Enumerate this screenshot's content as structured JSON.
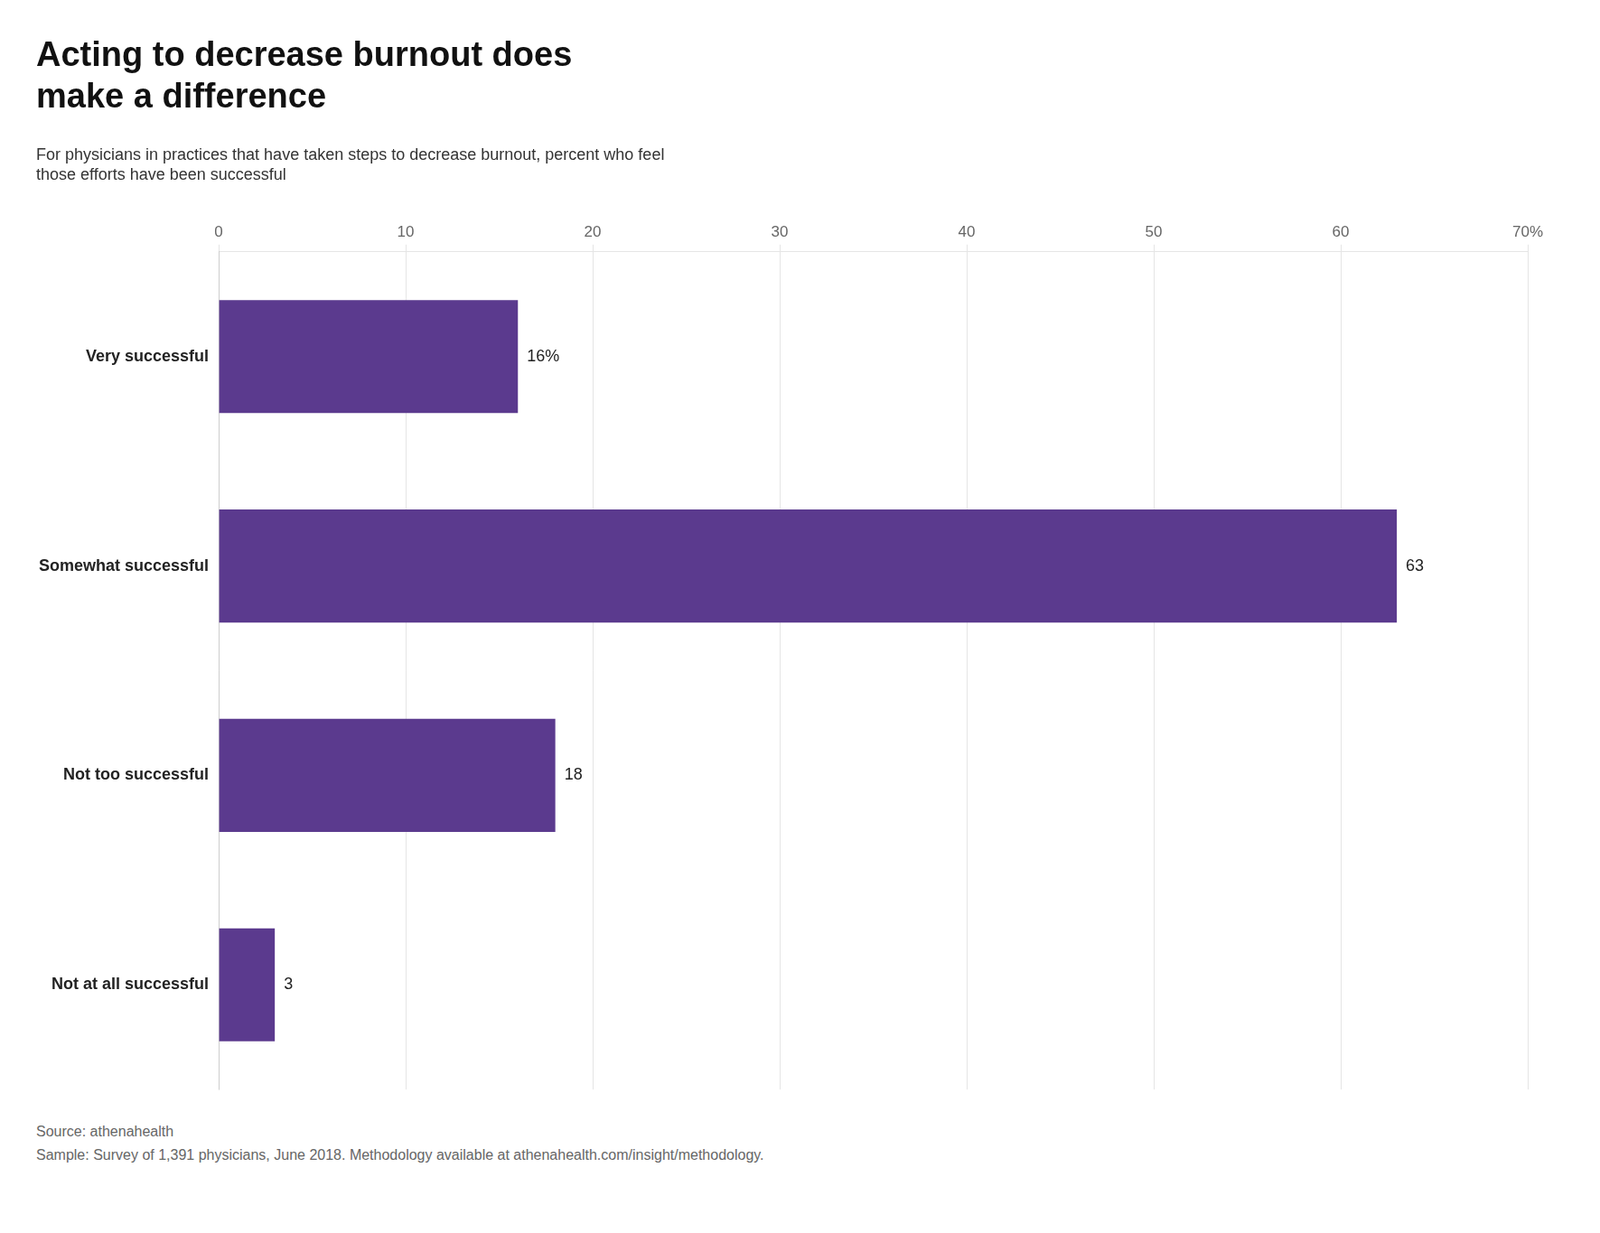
{
  "chart_data": {
    "type": "bar",
    "orientation": "horizontal",
    "title": "Acting to decrease burnout does\nmake a difference",
    "subtitle": "For physicians in practices that have taken steps to decrease burnout, percent who feel\nthose efforts have been successful",
    "categories": [
      "Very successful",
      "Somewhat successful",
      "Not too successful",
      "Not at all successful"
    ],
    "values": [
      16,
      63,
      18,
      3
    ],
    "value_labels": [
      "16%",
      "63",
      "18",
      "3"
    ],
    "data_labels": true,
    "color": "#5b3a8e",
    "xlim": [
      0,
      70
    ],
    "xticks": [
      0,
      10,
      20,
      30,
      40,
      50,
      60,
      {
        "value": 70,
        "label": "70%"
      }
    ],
    "grid": true,
    "annotations": [
      "Source: athenahealth",
      "Sample: Survey of 1,391 physicians, June 2018. Methodology available at athenahealth.com/insight/methodology."
    ]
  }
}
